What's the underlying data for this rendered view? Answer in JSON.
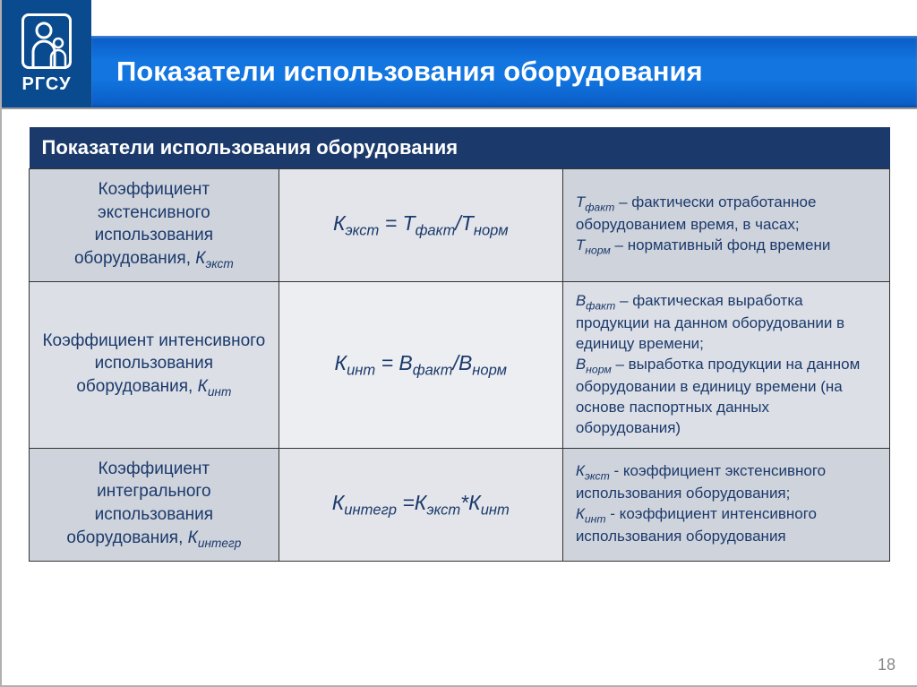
{
  "logo_text": "РГСУ",
  "title": "Показатели использования оборудования",
  "section_header": "Показатели использования оборудования",
  "page_number": "18",
  "rows": [
    {
      "name_html": "Коэффициент экстенсивного использования оборудования, <span class='italic'>К<sub>экст</sub></span>",
      "formula_html": "К<sub>экст</sub> = Т<sub>факт</sub>/Т<sub>норм</sub>",
      "desc_html": "<span class='italic'>Т<sub>факт</sub></span> – фактически отработанное оборудованием время, в часах;<br><span class='italic'>Т<sub>норм</sub></span> – нормативный фонд времени"
    },
    {
      "name_html": "Коэффициент интенсивного использования оборудования, <span class='italic'>К<sub>инт</sub></span>",
      "formula_html": "К<sub>инт</sub> = В<sub>факт</sub>/В<sub>норм</sub>",
      "desc_html": "<span class='italic'>В<sub>факт</sub></span> – фактическая выработка продукции на данном оборудовании в единицу времени;<br><span class='italic'>В<sub>норм</sub></span> – выработка продукции на данном оборудовании в единицу времени (на основе паспортных данных оборудования)"
    },
    {
      "name_html": "Коэффициент интегрального использования оборудования, <span class='italic'>К<sub>интегр</sub></span>",
      "formula_html": "К<sub>интегр</sub> =К<sub>экст</sub>*К<sub>инт</sub>",
      "desc_html": "<span class='italic'>К<sub>экст</sub></span> - коэффициент экстенсивного использования оборудования;<br><span class='italic'>К<sub>инт</sub></span> - коэффициент интенсивного использования оборудования"
    }
  ],
  "colors": {
    "header_bg": "#0a5bc4",
    "logo_bg": "#0a4b8f",
    "section_bg": "#1b3a6b",
    "text": "#1b3a6b",
    "row_light_name": "#dcdfe6",
    "row_light_formula": "#eceef2",
    "row_dark_name": "#cfd3dc",
    "row_dark_formula": "#e3e5ea",
    "border": "#333333"
  },
  "table": {
    "col_widths_pct": [
      29,
      33,
      38
    ],
    "row_count": 3
  }
}
